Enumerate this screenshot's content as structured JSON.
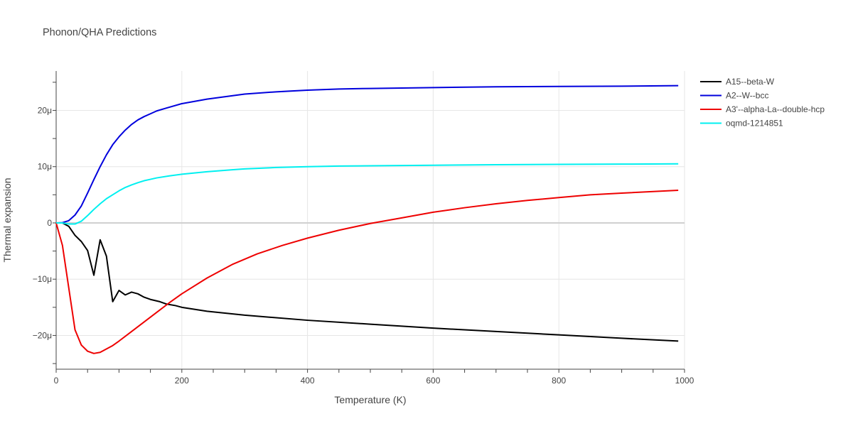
{
  "chart_data": {
    "type": "line",
    "title": "Phonon/QHA Predictions",
    "xlabel": "Temperature (K)",
    "ylabel": "Thermal expansion",
    "xlim": [
      0,
      1000
    ],
    "ylim": [
      -2.6e-05,
      2.7e-05
    ],
    "x_ticks": [
      {
        "value": 0,
        "label": "0"
      },
      {
        "value": 200,
        "label": "200"
      },
      {
        "value": 400,
        "label": "400"
      },
      {
        "value": 600,
        "label": "600"
      },
      {
        "value": 800,
        "label": "800"
      },
      {
        "value": 1000,
        "label": "1000"
      }
    ],
    "y_ticks": [
      {
        "value": -2e-05,
        "label": "−20μ"
      },
      {
        "value": -1e-05,
        "label": "−10μ"
      },
      {
        "value": 0,
        "label": "0"
      },
      {
        "value": 1e-05,
        "label": "10μ"
      },
      {
        "value": 2e-05,
        "label": "20μ"
      }
    ],
    "grid": true,
    "legend_position": "top-right",
    "series": [
      {
        "name": "A15--beta-W",
        "color": "#000000",
        "points": [
          [
            0,
            0
          ],
          [
            10,
            0
          ],
          [
            20,
            -0.6
          ],
          [
            30,
            -2.2
          ],
          [
            40,
            -3.3
          ],
          [
            50,
            -4.9
          ],
          [
            60,
            -9.3
          ],
          [
            70,
            -3
          ],
          [
            80,
            -5.9
          ],
          [
            90,
            -14
          ],
          [
            100,
            -12
          ],
          [
            110,
            -12.8
          ],
          [
            120,
            -12.3
          ],
          [
            130,
            -12.6
          ],
          [
            140,
            -13.2
          ],
          [
            150,
            -13.6
          ],
          [
            165,
            -14
          ],
          [
            175,
            -14.4
          ],
          [
            190,
            -14.7
          ],
          [
            200,
            -15
          ],
          [
            240,
            -15.7
          ],
          [
            300,
            -16.4
          ],
          [
            400,
            -17.3
          ],
          [
            500,
            -18
          ],
          [
            600,
            -18.7
          ],
          [
            700,
            -19.3
          ],
          [
            800,
            -19.9
          ],
          [
            900,
            -20.5
          ],
          [
            990,
            -21
          ]
        ]
      },
      {
        "name": "A2--W--bcc",
        "color": "#0000dd",
        "points": [
          [
            0,
            0
          ],
          [
            10,
            0.05
          ],
          [
            20,
            0.4
          ],
          [
            30,
            1.4
          ],
          [
            40,
            3
          ],
          [
            50,
            5.3
          ],
          [
            60,
            7.7
          ],
          [
            70,
            10
          ],
          [
            80,
            12.1
          ],
          [
            90,
            13.9
          ],
          [
            100,
            15.3
          ],
          [
            110,
            16.5
          ],
          [
            120,
            17.5
          ],
          [
            130,
            18.3
          ],
          [
            140,
            18.9
          ],
          [
            150,
            19.4
          ],
          [
            160,
            19.9
          ],
          [
            175,
            20.4
          ],
          [
            200,
            21.2
          ],
          [
            240,
            22
          ],
          [
            280,
            22.6
          ],
          [
            300,
            22.9
          ],
          [
            350,
            23.3
          ],
          [
            400,
            23.6
          ],
          [
            450,
            23.8
          ],
          [
            500,
            23.9
          ],
          [
            600,
            24.05
          ],
          [
            700,
            24.2
          ],
          [
            800,
            24.25
          ],
          [
            900,
            24.3
          ],
          [
            990,
            24.4
          ]
        ]
      },
      {
        "name": "A3'--alpha-La--double-hcp",
        "color": "#ee0000",
        "points": [
          [
            0,
            0
          ],
          [
            10,
            -4
          ],
          [
            20,
            -11.5
          ],
          [
            30,
            -19
          ],
          [
            40,
            -21.7
          ],
          [
            50,
            -22.8
          ],
          [
            60,
            -23.2
          ],
          [
            70,
            -23
          ],
          [
            80,
            -22.4
          ],
          [
            90,
            -21.8
          ],
          [
            100,
            -21
          ],
          [
            120,
            -19.3
          ],
          [
            140,
            -17.6
          ],
          [
            160,
            -15.9
          ],
          [
            180,
            -14.2
          ],
          [
            200,
            -12.6
          ],
          [
            240,
            -9.8
          ],
          [
            280,
            -7.4
          ],
          [
            320,
            -5.5
          ],
          [
            360,
            -4
          ],
          [
            400,
            -2.7
          ],
          [
            450,
            -1.3
          ],
          [
            500,
            -0.1
          ],
          [
            550,
            0.9
          ],
          [
            600,
            1.9
          ],
          [
            650,
            2.7
          ],
          [
            700,
            3.4
          ],
          [
            750,
            4
          ],
          [
            800,
            4.5
          ],
          [
            850,
            5
          ],
          [
            900,
            5.3
          ],
          [
            990,
            5.8
          ]
        ]
      },
      {
        "name": "oqmd-1214851",
        "color": "#00f0f0",
        "points": [
          [
            0,
            0
          ],
          [
            10,
            0
          ],
          [
            20,
            -0.2
          ],
          [
            30,
            -0.2
          ],
          [
            40,
            0.3
          ],
          [
            50,
            1.3
          ],
          [
            60,
            2.4
          ],
          [
            70,
            3.4
          ],
          [
            80,
            4.3
          ],
          [
            90,
            5
          ],
          [
            100,
            5.7
          ],
          [
            110,
            6.3
          ],
          [
            120,
            6.75
          ],
          [
            130,
            7.15
          ],
          [
            140,
            7.5
          ],
          [
            150,
            7.75
          ],
          [
            160,
            8
          ],
          [
            180,
            8.35
          ],
          [
            200,
            8.65
          ],
          [
            240,
            9.1
          ],
          [
            280,
            9.45
          ],
          [
            300,
            9.6
          ],
          [
            350,
            9.85
          ],
          [
            400,
            10
          ],
          [
            450,
            10.1
          ],
          [
            500,
            10.15
          ],
          [
            600,
            10.25
          ],
          [
            700,
            10.35
          ],
          [
            800,
            10.4
          ],
          [
            900,
            10.45
          ],
          [
            990,
            10.5
          ]
        ]
      }
    ],
    "y_unit_scale": 1e-06
  }
}
